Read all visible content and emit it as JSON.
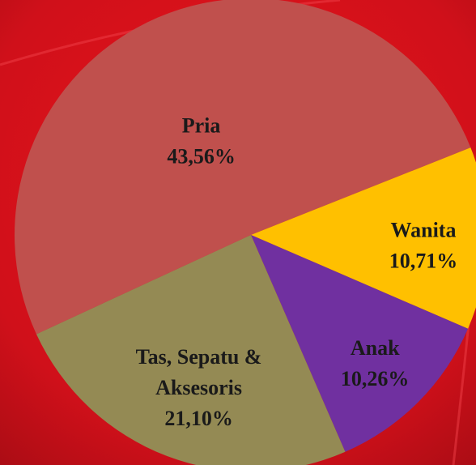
{
  "chart_data": {
    "type": "pie",
    "categories": [
      "Pria",
      "Wanita",
      "Anak",
      "Tas, Sepatu & Aksesoris"
    ],
    "values": [
      43.56,
      10.71,
      10.26,
      21.1
    ],
    "value_labels": [
      "43,56%",
      "10,71%",
      "10,26%",
      "21,10%"
    ],
    "colors": [
      "#c0504d",
      "#ffc000",
      "#7030a0",
      "#948a54"
    ]
  }
}
